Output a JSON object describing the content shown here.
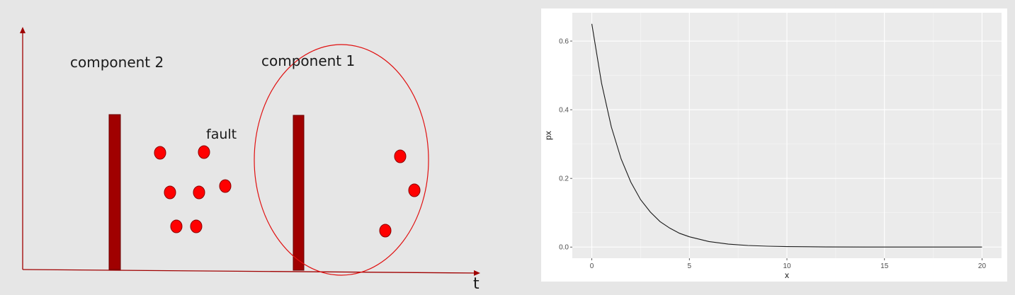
{
  "diagram": {
    "component_2_label": "component 2",
    "component_1_label": "component 1",
    "fault_label": "fault",
    "time_axis_label": "t",
    "colors": {
      "axis": "#a00000",
      "component_bar": "#a00000",
      "fault_dot": "#ff0000",
      "highlight_ellipse": "#e01010"
    }
  },
  "chart_data": {
    "type": "line",
    "title": "",
    "xlabel": "x",
    "ylabel": "px",
    "xlim": [
      0,
      20
    ],
    "ylim": [
      0,
      0.65
    ],
    "x_ticks": [
      "0",
      "5",
      "10",
      "15",
      "20"
    ],
    "y_ticks": [
      "0.0",
      "0.2",
      "0.4",
      "0.6"
    ],
    "grid": true,
    "series": [
      {
        "x": [
          0,
          0.5,
          1,
          1.5,
          2,
          2.5,
          3,
          3.5,
          4,
          4.5,
          5,
          6,
          7,
          8,
          9,
          10,
          12,
          14,
          16,
          18,
          20
        ],
        "y": [
          0.65,
          0.477,
          0.35,
          0.257,
          0.189,
          0.138,
          0.102,
          0.074,
          0.055,
          0.04,
          0.03,
          0.016,
          0.0086,
          0.0046,
          0.0025,
          0.0013,
          0.0004,
          0.0001,
          0,
          0,
          0
        ]
      }
    ]
  }
}
